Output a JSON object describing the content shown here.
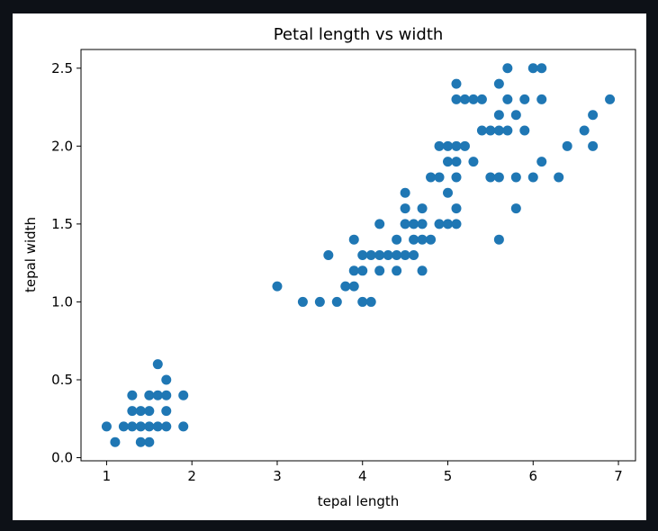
{
  "chart_data": {
    "type": "scatter",
    "title": "Petal length vs width",
    "xlabel": "tepal length",
    "ylabel": "tepal width",
    "xlim": [
      0.7,
      7.2
    ],
    "ylim": [
      -0.02,
      2.62
    ],
    "xticks": [
      1,
      2,
      3,
      4,
      5,
      6,
      7
    ],
    "xtick_labels": [
      "1",
      "2",
      "3",
      "4",
      "5",
      "6",
      "7"
    ],
    "yticks": [
      0.0,
      0.5,
      1.0,
      1.5,
      2.0,
      2.5
    ],
    "ytick_labels": [
      "0.0",
      "0.5",
      "1.0",
      "1.5",
      "2.0",
      "2.5"
    ],
    "grid": false,
    "marker_color": "#1f77b4",
    "points": [
      [
        1.0,
        0.2
      ],
      [
        1.1,
        0.1
      ],
      [
        1.2,
        0.2
      ],
      [
        1.3,
        0.2
      ],
      [
        1.3,
        0.3
      ],
      [
        1.3,
        0.4
      ],
      [
        1.4,
        0.1
      ],
      [
        1.4,
        0.2
      ],
      [
        1.4,
        0.3
      ],
      [
        1.5,
        0.1
      ],
      [
        1.5,
        0.2
      ],
      [
        1.5,
        0.3
      ],
      [
        1.5,
        0.4
      ],
      [
        1.6,
        0.2
      ],
      [
        1.6,
        0.4
      ],
      [
        1.6,
        0.6
      ],
      [
        1.7,
        0.2
      ],
      [
        1.7,
        0.3
      ],
      [
        1.7,
        0.4
      ],
      [
        1.7,
        0.5
      ],
      [
        1.9,
        0.2
      ],
      [
        1.9,
        0.4
      ],
      [
        3.0,
        1.1
      ],
      [
        3.3,
        1.0
      ],
      [
        3.5,
        1.0
      ],
      [
        3.6,
        1.3
      ],
      [
        3.7,
        1.0
      ],
      [
        3.8,
        1.1
      ],
      [
        3.9,
        1.1
      ],
      [
        3.9,
        1.2
      ],
      [
        3.9,
        1.4
      ],
      [
        4.0,
        1.0
      ],
      [
        4.0,
        1.2
      ],
      [
        4.0,
        1.3
      ],
      [
        4.1,
        1.0
      ],
      [
        4.1,
        1.3
      ],
      [
        4.2,
        1.2
      ],
      [
        4.2,
        1.3
      ],
      [
        4.2,
        1.5
      ],
      [
        4.3,
        1.3
      ],
      [
        4.4,
        1.2
      ],
      [
        4.4,
        1.3
      ],
      [
        4.4,
        1.4
      ],
      [
        4.5,
        1.3
      ],
      [
        4.5,
        1.5
      ],
      [
        4.5,
        1.6
      ],
      [
        4.5,
        1.7
      ],
      [
        4.6,
        1.3
      ],
      [
        4.6,
        1.4
      ],
      [
        4.6,
        1.5
      ],
      [
        4.7,
        1.2
      ],
      [
        4.7,
        1.4
      ],
      [
        4.7,
        1.5
      ],
      [
        4.7,
        1.6
      ],
      [
        4.8,
        1.4
      ],
      [
        4.8,
        1.8
      ],
      [
        4.9,
        1.5
      ],
      [
        4.9,
        1.8
      ],
      [
        4.9,
        2.0
      ],
      [
        5.0,
        1.5
      ],
      [
        5.0,
        1.7
      ],
      [
        5.0,
        1.9
      ],
      [
        5.0,
        2.0
      ],
      [
        5.1,
        1.5
      ],
      [
        5.1,
        1.6
      ],
      [
        5.1,
        1.8
      ],
      [
        5.1,
        1.9
      ],
      [
        5.1,
        2.0
      ],
      [
        5.1,
        2.3
      ],
      [
        5.1,
        2.4
      ],
      [
        5.2,
        2.0
      ],
      [
        5.2,
        2.3
      ],
      [
        5.3,
        1.9
      ],
      [
        5.3,
        2.3
      ],
      [
        5.4,
        2.1
      ],
      [
        5.4,
        2.3
      ],
      [
        5.5,
        1.8
      ],
      [
        5.5,
        2.1
      ],
      [
        5.6,
        1.4
      ],
      [
        5.6,
        1.8
      ],
      [
        5.6,
        2.1
      ],
      [
        5.6,
        2.2
      ],
      [
        5.6,
        2.4
      ],
      [
        5.7,
        2.1
      ],
      [
        5.7,
        2.3
      ],
      [
        5.7,
        2.5
      ],
      [
        5.8,
        1.6
      ],
      [
        5.8,
        1.8
      ],
      [
        5.8,
        2.2
      ],
      [
        5.9,
        2.1
      ],
      [
        5.9,
        2.3
      ],
      [
        6.0,
        1.8
      ],
      [
        6.0,
        2.5
      ],
      [
        6.1,
        1.9
      ],
      [
        6.1,
        2.3
      ],
      [
        6.1,
        2.5
      ],
      [
        6.3,
        1.8
      ],
      [
        6.4,
        2.0
      ],
      [
        6.6,
        2.1
      ],
      [
        6.7,
        2.0
      ],
      [
        6.7,
        2.2
      ],
      [
        6.9,
        2.3
      ]
    ]
  }
}
